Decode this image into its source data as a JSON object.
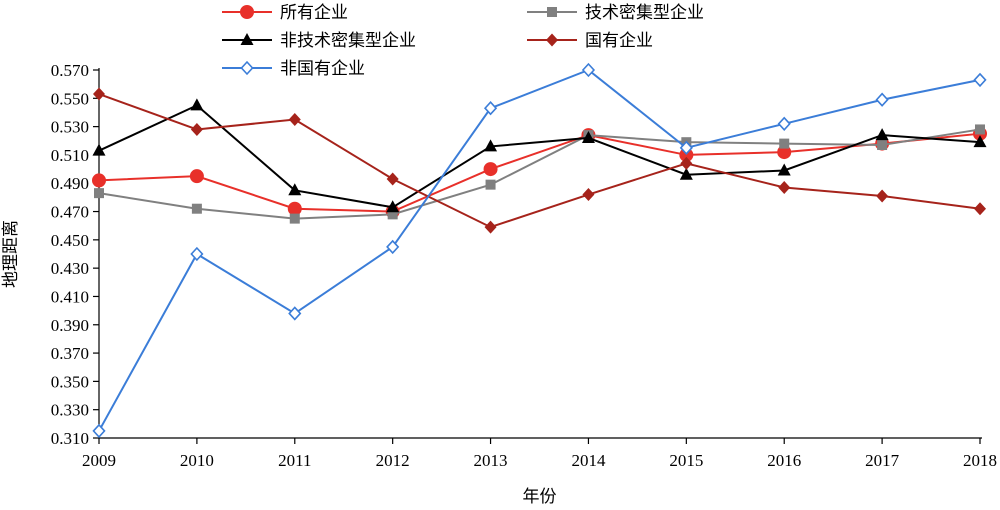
{
  "chart_data": {
    "type": "line",
    "title": "",
    "xlabel": "年份",
    "ylabel": "地理距离",
    "x": [
      "2009",
      "2010",
      "2011",
      "2012",
      "2013",
      "2014",
      "2015",
      "2016",
      "2017",
      "2018"
    ],
    "y_ticks": [
      "0.310",
      "0.330",
      "0.350",
      "0.370",
      "0.390",
      "0.410",
      "0.430",
      "0.450",
      "0.470",
      "0.490",
      "0.510",
      "0.530",
      "0.550",
      "0.570"
    ],
    "ylim": [
      0.31,
      0.57
    ],
    "grid": false,
    "legend_position": "top",
    "series": [
      {
        "name": "所有企业",
        "color": "#e8302a",
        "marker": "circle",
        "values": [
          0.492,
          0.495,
          0.472,
          0.47,
          0.5,
          0.524,
          0.51,
          0.512,
          0.518,
          0.525
        ]
      },
      {
        "name": "技术密集型企业",
        "color": "#808080",
        "marker": "square",
        "values": [
          0.483,
          0.472,
          0.465,
          0.468,
          0.489,
          0.524,
          0.519,
          0.518,
          0.517,
          0.528
        ]
      },
      {
        "name": "非技术密集型企业",
        "color": "#000000",
        "marker": "triangle",
        "values": [
          0.513,
          0.545,
          0.485,
          0.473,
          0.516,
          0.522,
          0.496,
          0.499,
          0.524,
          0.519
        ]
      },
      {
        "name": "国有企业",
        "color": "#a6231b",
        "marker": "diamond",
        "values": [
          0.553,
          0.528,
          0.535,
          0.493,
          0.459,
          0.482,
          0.504,
          0.487,
          0.481,
          0.472
        ]
      },
      {
        "name": "非国有企业",
        "color": "#3b7dd8",
        "marker": "diamond-open",
        "values": [
          0.315,
          0.44,
          0.398,
          0.445,
          0.543,
          0.57,
          0.515,
          0.532,
          0.549,
          0.563
        ]
      }
    ]
  }
}
